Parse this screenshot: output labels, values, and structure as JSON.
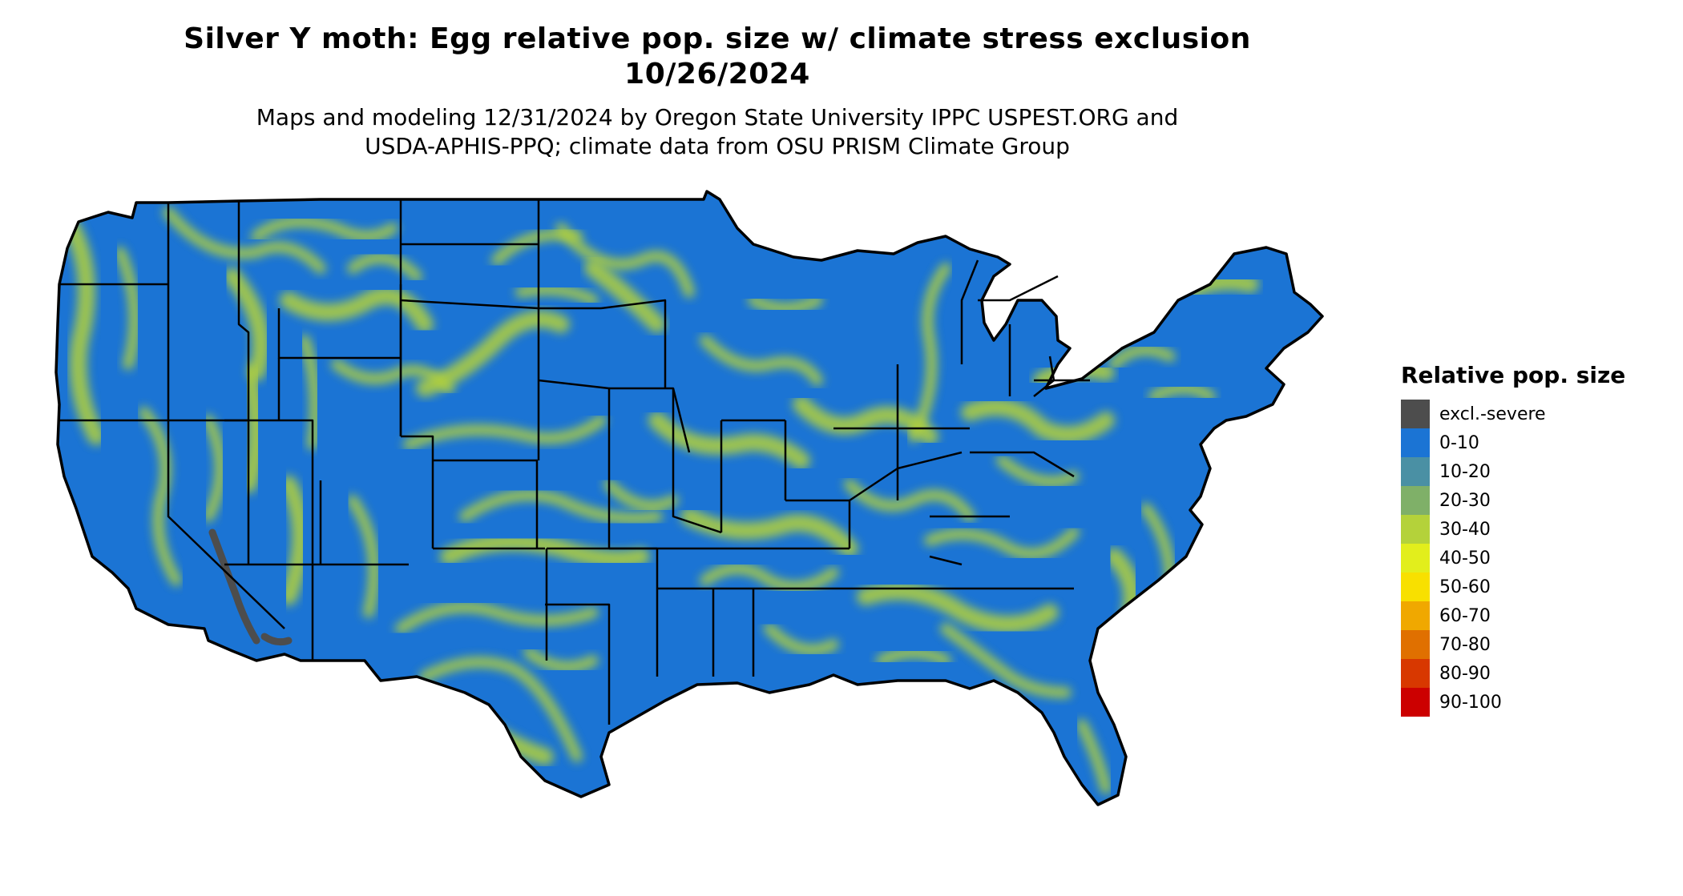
{
  "title": {
    "line1": "Silver Y moth: Egg relative pop. size w/ climate stress exclusion",
    "line2": "10/26/2024"
  },
  "subtitle": {
    "line1": "Maps and modeling 12/31/2024 by Oregon State University IPPC USPEST.ORG and",
    "line2": "USDA-APHIS-PPQ; climate data from OSU PRISM Climate Group"
  },
  "legend": {
    "title": "Relative pop. size",
    "items": [
      {
        "label": "excl.-severe",
        "color": "#4d4d4d"
      },
      {
        "label": "0-10",
        "color": "#1b74d4"
      },
      {
        "label": "10-20",
        "color": "#4a90a4"
      },
      {
        "label": "20-30",
        "color": "#7fb068"
      },
      {
        "label": "30-40",
        "color": "#b4d23a"
      },
      {
        "label": "40-50",
        "color": "#e2ee1c"
      },
      {
        "label": "50-60",
        "color": "#f8e000"
      },
      {
        "label": "60-70",
        "color": "#f0a800"
      },
      {
        "label": "70-80",
        "color": "#e07000"
      },
      {
        "label": "80-90",
        "color": "#d83800"
      },
      {
        "label": "90-100",
        "color": "#cc0000"
      }
    ]
  },
  "map": {
    "region": "contiguous-united-states",
    "base_color": "#1b74d4",
    "hotspot_color": "#b4d23a",
    "excluded_color": "#4d4d4d",
    "border_color": "#000000"
  }
}
